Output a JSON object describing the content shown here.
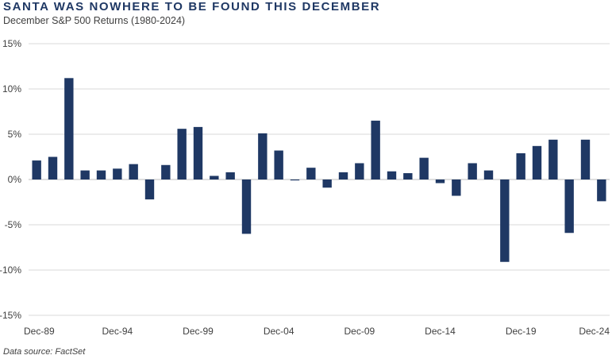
{
  "title": "SANTA WAS NOWHERE TO BE FOUND THIS DECEMBER",
  "subtitle": "December S&P 500 Returns (1980-2024)",
  "source": "Data source: FactSet",
  "colors": {
    "bar": "#1f3864",
    "grid": "#d9d9d9",
    "axis_text": "#404040"
  },
  "chart_data": {
    "type": "bar",
    "title": "SANTA WAS NOWHERE TO BE FOUND THIS DECEMBER",
    "subtitle": "December S&P 500 Returns (1980-2024)",
    "xlabel": "",
    "ylabel": "",
    "ylim": [
      -15,
      15
    ],
    "yticks": [
      -15,
      -10,
      -5,
      0,
      5,
      10,
      15
    ],
    "ytick_labels": [
      "-15%",
      "-10%",
      "-5%",
      "0%",
      "5%",
      "10%",
      "15%"
    ],
    "grid": true,
    "categories": [
      "Dec-89",
      "Dec-90",
      "Dec-91",
      "Dec-92",
      "Dec-93",
      "Dec-94",
      "Dec-95",
      "Dec-96",
      "Dec-97",
      "Dec-98",
      "Dec-99",
      "Dec-00",
      "Dec-01",
      "Dec-02",
      "Dec-03",
      "Dec-04",
      "Dec-05",
      "Dec-06",
      "Dec-07",
      "Dec-08",
      "Dec-09",
      "Dec-10",
      "Dec-11",
      "Dec-12",
      "Dec-13",
      "Dec-14",
      "Dec-15",
      "Dec-16",
      "Dec-17",
      "Dec-18",
      "Dec-19",
      "Dec-20",
      "Dec-21",
      "Dec-22",
      "Dec-23",
      "Dec-24"
    ],
    "visible_xtick_labels": [
      "Dec-89",
      "Dec-94",
      "Dec-99",
      "Dec-04",
      "Dec-09",
      "Dec-14",
      "Dec-19",
      "Dec-24"
    ],
    "values": [
      2.1,
      2.5,
      11.2,
      1.0,
      1.0,
      1.2,
      1.7,
      -2.2,
      1.6,
      5.6,
      5.8,
      0.4,
      0.8,
      -6.0,
      5.1,
      3.2,
      -0.1,
      1.3,
      -0.9,
      0.8,
      1.8,
      6.5,
      0.9,
      0.7,
      2.4,
      -0.4,
      -1.8,
      1.8,
      1.0,
      -9.1,
      2.9,
      3.7,
      4.4,
      -5.9,
      4.4,
      -2.4
    ],
    "source_note": "Data source: FactSet"
  }
}
